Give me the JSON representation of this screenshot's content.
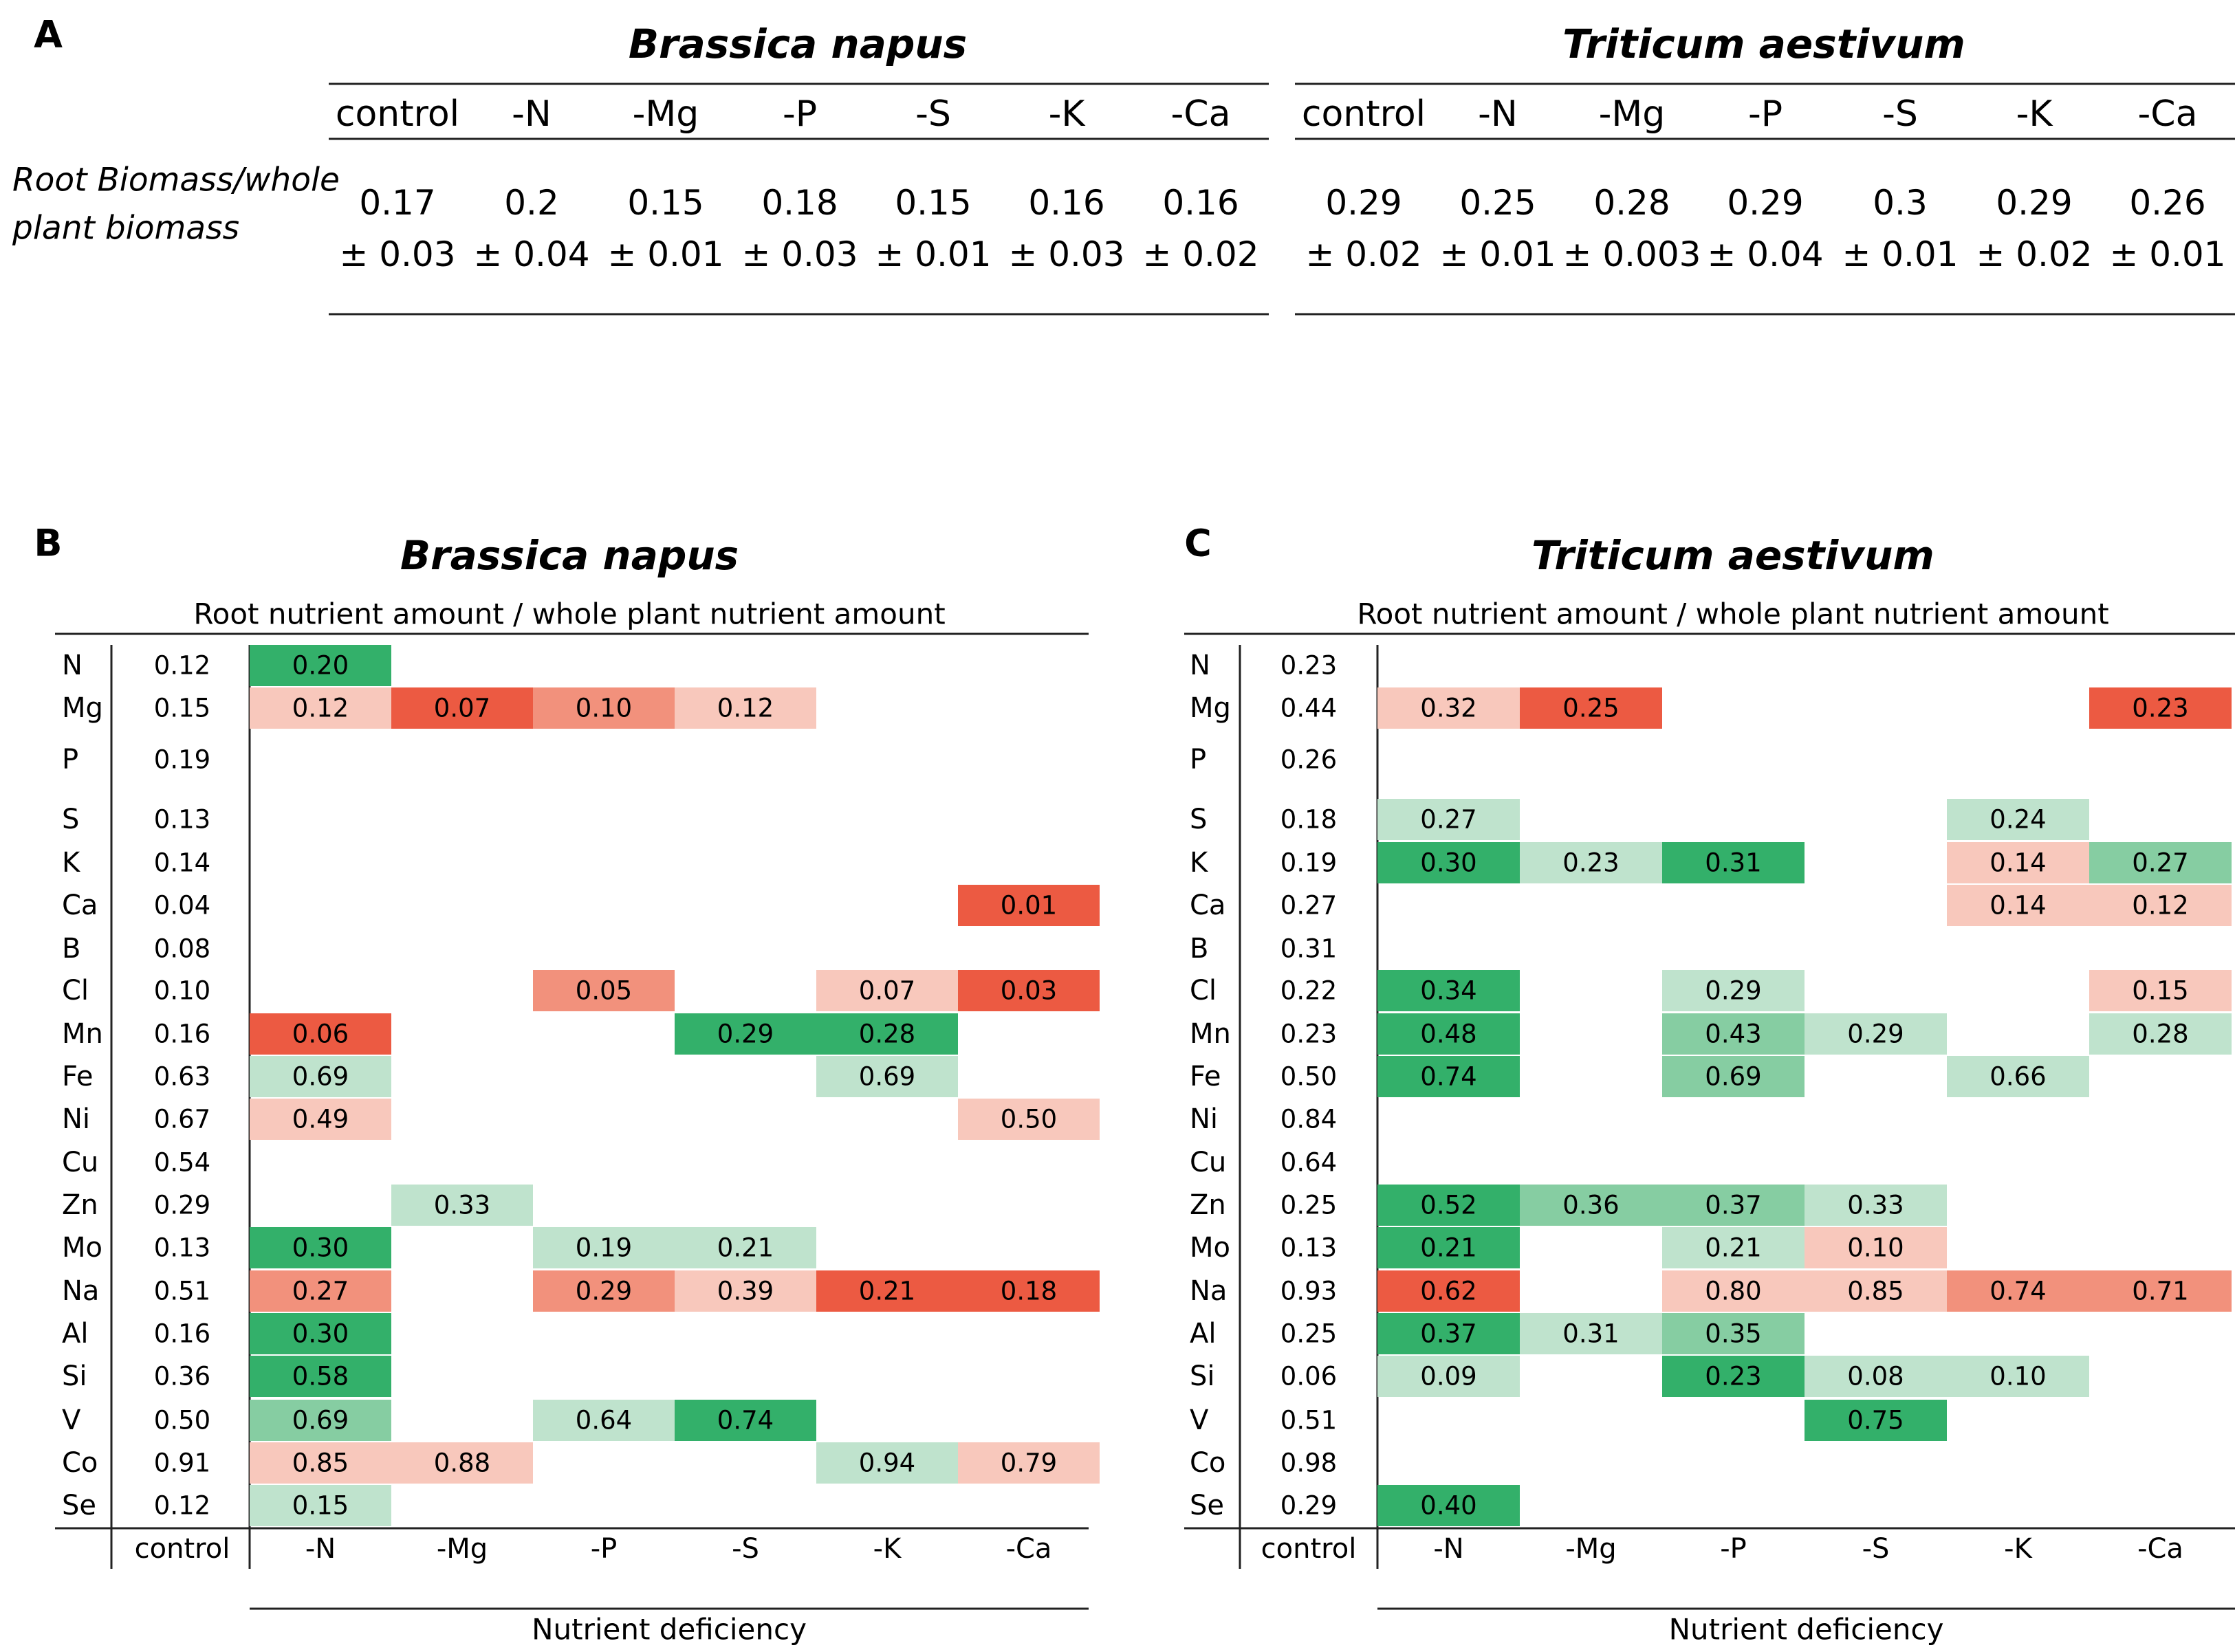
{
  "panel_a": {
    "label": "A",
    "row_label_line1": "Root Biomass/whole",
    "row_label_line2": "plant biomass",
    "species": [
      {
        "name": "Brassica napus",
        "columns": [
          "control",
          "-N",
          "-Mg",
          "-P",
          "-S",
          "-K",
          "-Ca"
        ],
        "values": [
          "0.17",
          "0.2",
          "0.15",
          "0.18",
          "0.15",
          "0.16",
          "0.16"
        ],
        "errors": [
          "± 0.03",
          "± 0.04",
          "± 0.01",
          "± 0.03",
          "± 0.01",
          "± 0.03",
          "± 0.02"
        ]
      },
      {
        "name": "Triticum aestivum",
        "columns": [
          "control",
          "-N",
          "-Mg",
          "-P",
          "-S",
          "-K",
          "-Ca"
        ],
        "values": [
          "0.29",
          "0.25",
          "0.28",
          "0.29",
          "0.3",
          "0.29",
          "0.26"
        ],
        "errors": [
          "± 0.02",
          "± 0.01",
          "± 0.003",
          "± 0.04",
          "± 0.01",
          "± 0.02",
          "± 0.01"
        ]
      }
    ]
  },
  "colors": {
    "green_strong": "#33b06a",
    "green_medium": "#86cda2",
    "green_light": "#bfe3cd",
    "red_strong": "#ec5a42",
    "red_medium": "#f2917c",
    "red_light": "#f8c8bc"
  },
  "chart_data": [
    {
      "type": "heatmap",
      "label": "B",
      "title": "Brassica napus",
      "subtitle": "Root nutrient amount / whole plant nutrient amount",
      "xlabel": "Nutrient deficiency",
      "control_label": "control",
      "columns": [
        "-N",
        "-Mg",
        "-P",
        "-S",
        "-K",
        "-Ca"
      ],
      "rows": [
        "N",
        "Mg",
        "P",
        "S",
        "K",
        "Ca",
        "B",
        "Cl",
        "Mn",
        "Fe",
        "Ni",
        "Cu",
        "Zn",
        "Mo",
        "Na",
        "Al",
        "Si",
        "V",
        "Co",
        "Se"
      ],
      "control": [
        "0.12",
        "0.15",
        "0.19",
        "0.13",
        "0.14",
        "0.04",
        "0.08",
        "0.10",
        "0.16",
        "0.63",
        "0.67",
        "0.54",
        "0.29",
        "0.13",
        "0.51",
        "0.16",
        "0.36",
        "0.50",
        "0.91",
        "0.12"
      ],
      "cells": [
        {
          "row": 0,
          "col": 0,
          "value": "0.20",
          "color": "green_strong"
        },
        {
          "row": 1,
          "col": 0,
          "value": "0.12",
          "color": "red_light"
        },
        {
          "row": 1,
          "col": 1,
          "value": "0.07",
          "color": "red_strong"
        },
        {
          "row": 1,
          "col": 2,
          "value": "0.10",
          "color": "red_medium"
        },
        {
          "row": 1,
          "col": 3,
          "value": "0.12",
          "color": "red_light"
        },
        {
          "row": 5,
          "col": 5,
          "value": "0.01",
          "color": "red_strong"
        },
        {
          "row": 7,
          "col": 2,
          "value": "0.05",
          "color": "red_medium"
        },
        {
          "row": 7,
          "col": 4,
          "value": "0.07",
          "color": "red_light"
        },
        {
          "row": 7,
          "col": 5,
          "value": "0.03",
          "color": "red_strong"
        },
        {
          "row": 8,
          "col": 0,
          "value": "0.06",
          "color": "red_strong"
        },
        {
          "row": 8,
          "col": 3,
          "value": "0.29",
          "color": "green_strong"
        },
        {
          "row": 8,
          "col": 4,
          "value": "0.28",
          "color": "green_strong"
        },
        {
          "row": 9,
          "col": 0,
          "value": "0.69",
          "color": "green_light"
        },
        {
          "row": 9,
          "col": 4,
          "value": "0.69",
          "color": "green_light"
        },
        {
          "row": 10,
          "col": 0,
          "value": "0.49",
          "color": "red_light"
        },
        {
          "row": 10,
          "col": 5,
          "value": "0.50",
          "color": "red_light"
        },
        {
          "row": 12,
          "col": 1,
          "value": "0.33",
          "color": "green_light"
        },
        {
          "row": 13,
          "col": 0,
          "value": "0.30",
          "color": "green_strong"
        },
        {
          "row": 13,
          "col": 2,
          "value": "0.19",
          "color": "green_light"
        },
        {
          "row": 13,
          "col": 3,
          "value": "0.21",
          "color": "green_light"
        },
        {
          "row": 14,
          "col": 0,
          "value": "0.27",
          "color": "red_medium"
        },
        {
          "row": 14,
          "col": 2,
          "value": "0.29",
          "color": "red_medium"
        },
        {
          "row": 14,
          "col": 3,
          "value": "0.39",
          "color": "red_light"
        },
        {
          "row": 14,
          "col": 4,
          "value": "0.21",
          "color": "red_strong"
        },
        {
          "row": 14,
          "col": 5,
          "value": "0.18",
          "color": "red_strong"
        },
        {
          "row": 15,
          "col": 0,
          "value": "0.30",
          "color": "green_strong"
        },
        {
          "row": 16,
          "col": 0,
          "value": "0.58",
          "color": "green_strong"
        },
        {
          "row": 17,
          "col": 0,
          "value": "0.69",
          "color": "green_medium"
        },
        {
          "row": 17,
          "col": 2,
          "value": "0.64",
          "color": "green_light"
        },
        {
          "row": 17,
          "col": 3,
          "value": "0.74",
          "color": "green_strong"
        },
        {
          "row": 18,
          "col": 0,
          "value": "0.85",
          "color": "red_light"
        },
        {
          "row": 18,
          "col": 1,
          "value": "0.88",
          "color": "red_light"
        },
        {
          "row": 18,
          "col": 4,
          "value": "0.94",
          "color": "green_light"
        },
        {
          "row": 18,
          "col": 5,
          "value": "0.79",
          "color": "red_light"
        },
        {
          "row": 19,
          "col": 0,
          "value": "0.15",
          "color": "green_light"
        }
      ]
    },
    {
      "type": "heatmap",
      "label": "C",
      "title": "Triticum aestivum",
      "subtitle": "Root nutrient amount / whole plant nutrient amount",
      "xlabel": "Nutrient deficiency",
      "control_label": "control",
      "columns": [
        "-N",
        "-Mg",
        "-P",
        "-S",
        "-K",
        "-Ca"
      ],
      "rows": [
        "N",
        "Mg",
        "P",
        "S",
        "K",
        "Ca",
        "B",
        "Cl",
        "Mn",
        "Fe",
        "Ni",
        "Cu",
        "Zn",
        "Mo",
        "Na",
        "Al",
        "Si",
        "V",
        "Co",
        "Se"
      ],
      "control": [
        "0.23",
        "0.44",
        "0.26",
        "0.18",
        "0.19",
        "0.27",
        "0.31",
        "0.22",
        "0.23",
        "0.50",
        "0.84",
        "0.64",
        "0.25",
        "0.13",
        "0.93",
        "0.25",
        "0.06",
        "0.51",
        "0.98",
        "0.29"
      ],
      "cells": [
        {
          "row": 1,
          "col": 0,
          "value": "0.32",
          "color": "red_light"
        },
        {
          "row": 1,
          "col": 1,
          "value": "0.25",
          "color": "red_strong"
        },
        {
          "row": 1,
          "col": 5,
          "value": "0.23",
          "color": "red_strong"
        },
        {
          "row": 3,
          "col": 0,
          "value": "0.27",
          "color": "green_light"
        },
        {
          "row": 3,
          "col": 4,
          "value": "0.24",
          "color": "green_light"
        },
        {
          "row": 4,
          "col": 0,
          "value": "0.30",
          "color": "green_strong"
        },
        {
          "row": 4,
          "col": 1,
          "value": "0.23",
          "color": "green_light"
        },
        {
          "row": 4,
          "col": 2,
          "value": "0.31",
          "color": "green_strong"
        },
        {
          "row": 4,
          "col": 4,
          "value": "0.14",
          "color": "red_light"
        },
        {
          "row": 4,
          "col": 5,
          "value": "0.27",
          "color": "green_medium"
        },
        {
          "row": 5,
          "col": 4,
          "value": "0.14",
          "color": "red_light"
        },
        {
          "row": 5,
          "col": 5,
          "value": "0.12",
          "color": "red_light"
        },
        {
          "row": 7,
          "col": 0,
          "value": "0.34",
          "color": "green_strong"
        },
        {
          "row": 7,
          "col": 2,
          "value": "0.29",
          "color": "green_light"
        },
        {
          "row": 7,
          "col": 5,
          "value": "0.15",
          "color": "red_light"
        },
        {
          "row": 8,
          "col": 0,
          "value": "0.48",
          "color": "green_strong"
        },
        {
          "row": 8,
          "col": 2,
          "value": "0.43",
          "color": "green_medium"
        },
        {
          "row": 8,
          "col": 3,
          "value": "0.29",
          "color": "green_light"
        },
        {
          "row": 8,
          "col": 5,
          "value": "0.28",
          "color": "green_light"
        },
        {
          "row": 9,
          "col": 0,
          "value": "0.74",
          "color": "green_strong"
        },
        {
          "row": 9,
          "col": 2,
          "value": "0.69",
          "color": "green_medium"
        },
        {
          "row": 9,
          "col": 4,
          "value": "0.66",
          "color": "green_light"
        },
        {
          "row": 12,
          "col": 0,
          "value": "0.52",
          "color": "green_strong"
        },
        {
          "row": 12,
          "col": 1,
          "value": "0.36",
          "color": "green_medium"
        },
        {
          "row": 12,
          "col": 2,
          "value": "0.37",
          "color": "green_medium"
        },
        {
          "row": 12,
          "col": 3,
          "value": "0.33",
          "color": "green_light"
        },
        {
          "row": 13,
          "col": 0,
          "value": "0.21",
          "color": "green_strong"
        },
        {
          "row": 13,
          "col": 2,
          "value": "0.21",
          "color": "green_light"
        },
        {
          "row": 13,
          "col": 3,
          "value": "0.10",
          "color": "red_light"
        },
        {
          "row": 14,
          "col": 0,
          "value": "0.62",
          "color": "red_strong"
        },
        {
          "row": 14,
          "col": 2,
          "value": "0.80",
          "color": "red_light"
        },
        {
          "row": 14,
          "col": 3,
          "value": "0.85",
          "color": "red_light"
        },
        {
          "row": 14,
          "col": 4,
          "value": "0.74",
          "color": "red_medium"
        },
        {
          "row": 14,
          "col": 5,
          "value": "0.71",
          "color": "red_medium"
        },
        {
          "row": 15,
          "col": 0,
          "value": "0.37",
          "color": "green_strong"
        },
        {
          "row": 15,
          "col": 1,
          "value": "0.31",
          "color": "green_light"
        },
        {
          "row": 15,
          "col": 2,
          "value": "0.35",
          "color": "green_medium"
        },
        {
          "row": 16,
          "col": 0,
          "value": "0.09",
          "color": "green_light"
        },
        {
          "row": 16,
          "col": 2,
          "value": "0.23",
          "color": "green_strong"
        },
        {
          "row": 16,
          "col": 3,
          "value": "0.08",
          "color": "green_light"
        },
        {
          "row": 16,
          "col": 4,
          "value": "0.10",
          "color": "green_light"
        },
        {
          "row": 17,
          "col": 3,
          "value": "0.75",
          "color": "green_strong"
        },
        {
          "row": 19,
          "col": 0,
          "value": "0.40",
          "color": "green_strong"
        }
      ]
    }
  ]
}
